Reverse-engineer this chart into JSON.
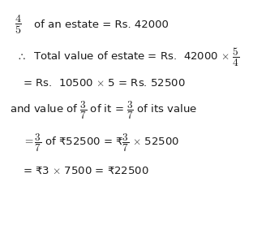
{
  "bg_color": "#ffffff",
  "text_color": "#1a1a1a",
  "figsize": [
    3.28,
    2.88
  ],
  "dpi": 100
}
